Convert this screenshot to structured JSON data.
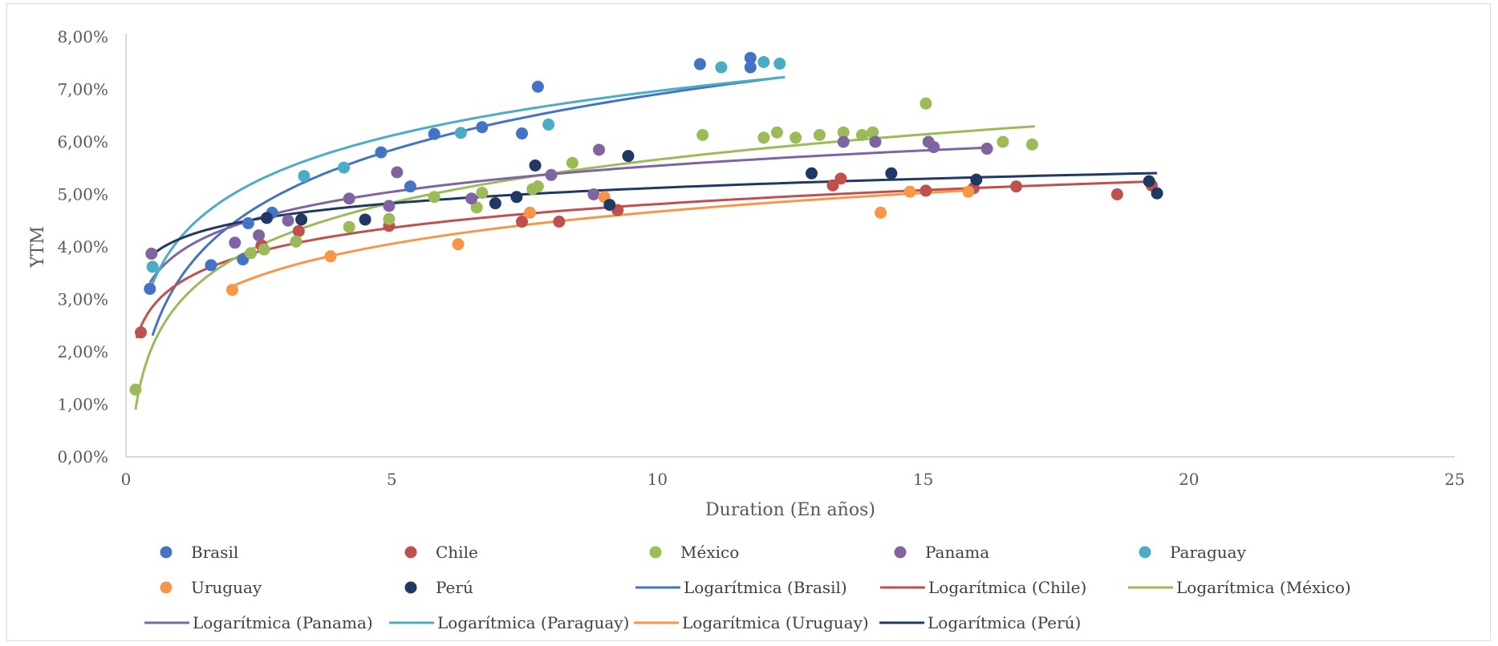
{
  "chart_data": {
    "type": "scatter",
    "title": "",
    "xlabel": "Duration (En años)",
    "ylabel": "YTM",
    "xlim": [
      0,
      25
    ],
    "ylim": [
      0,
      0.08
    ],
    "x_ticks": [
      "0",
      "5",
      "10",
      "15",
      "20",
      "25"
    ],
    "y_ticks": [
      "0,00%",
      "1,00%",
      "2,00%",
      "3,00%",
      "4,00%",
      "5,00%",
      "6,00%",
      "7,00%",
      "8,00%"
    ],
    "grid": false,
    "legend_position": "bottom",
    "series": [
      {
        "name": "Brasil",
        "color": "#4472C4",
        "trend_name": "Logarítmica (Brasil)",
        "trend_range": [
          0.5,
          12.3
        ],
        "points": [
          [
            0.45,
            0.032
          ],
          [
            1.6,
            0.0365
          ],
          [
            2.2,
            0.0376
          ],
          [
            2.3,
            0.0445
          ],
          [
            2.75,
            0.0465
          ],
          [
            4.8,
            0.058
          ],
          [
            5.35,
            0.0515
          ],
          [
            5.8,
            0.0615
          ],
          [
            6.7,
            0.0628
          ],
          [
            7.45,
            0.0616
          ],
          [
            7.75,
            0.0705
          ],
          [
            10.8,
            0.0748
          ],
          [
            11.75,
            0.0742
          ],
          [
            11.75,
            0.076
          ]
        ]
      },
      {
        "name": "Chile",
        "color": "#C0504D",
        "trend_name": "Logarítmica (Chile)",
        "trend_range": [
          0.2,
          19.3
        ],
        "points": [
          [
            0.28,
            0.0237
          ],
          [
            2.55,
            0.0403
          ],
          [
            3.25,
            0.043
          ],
          [
            4.95,
            0.044
          ],
          [
            7.45,
            0.0448
          ],
          [
            8.15,
            0.0448
          ],
          [
            9.25,
            0.047
          ],
          [
            13.3,
            0.0517
          ],
          [
            13.45,
            0.053
          ],
          [
            15.05,
            0.0507
          ],
          [
            15.95,
            0.0512
          ],
          [
            16.75,
            0.0515
          ],
          [
            18.65,
            0.05
          ],
          [
            19.3,
            0.0517
          ]
        ]
      },
      {
        "name": "México",
        "color": "#9BBB59",
        "trend_name": "Logarítmica (México)",
        "trend_range": [
          0.18,
          17.1
        ],
        "points": [
          [
            0.18,
            0.0128
          ],
          [
            2.35,
            0.0388
          ],
          [
            2.6,
            0.0395
          ],
          [
            3.2,
            0.041
          ],
          [
            4.2,
            0.0438
          ],
          [
            4.95,
            0.0453
          ],
          [
            5.8,
            0.0495
          ],
          [
            6.6,
            0.0475
          ],
          [
            6.7,
            0.0503
          ],
          [
            7.65,
            0.051
          ],
          [
            7.75,
            0.0515
          ],
          [
            8.4,
            0.056
          ],
          [
            10.85,
            0.0613
          ],
          [
            12.0,
            0.0608
          ],
          [
            12.25,
            0.0618
          ],
          [
            12.6,
            0.0608
          ],
          [
            13.05,
            0.0613
          ],
          [
            13.5,
            0.0618
          ],
          [
            13.85,
            0.0613
          ],
          [
            14.05,
            0.0618
          ],
          [
            15.05,
            0.0673
          ],
          [
            16.5,
            0.06
          ],
          [
            17.05,
            0.0595
          ]
        ]
      },
      {
        "name": "Panama",
        "color": "#8064A2",
        "trend_name": "Logarítmica (Panama)",
        "trend_range": [
          0.45,
          16.2
        ],
        "points": [
          [
            0.48,
            0.0387
          ],
          [
            2.05,
            0.0408
          ],
          [
            2.5,
            0.0422
          ],
          [
            3.05,
            0.045
          ],
          [
            4.2,
            0.0492
          ],
          [
            4.95,
            0.0478
          ],
          [
            5.1,
            0.0542
          ],
          [
            6.5,
            0.0492
          ],
          [
            8.0,
            0.0537
          ],
          [
            8.8,
            0.05
          ],
          [
            8.9,
            0.0585
          ],
          [
            13.5,
            0.06
          ],
          [
            14.1,
            0.06
          ],
          [
            15.1,
            0.06
          ],
          [
            15.2,
            0.059
          ],
          [
            16.2,
            0.0587
          ]
        ]
      },
      {
        "name": "Paraguay",
        "color": "#4BACC6",
        "trend_name": "Logarítmica (Paraguay)",
        "trend_range": [
          0.5,
          12.4
        ],
        "points": [
          [
            0.5,
            0.0362
          ],
          [
            3.35,
            0.0535
          ],
          [
            4.1,
            0.0551
          ],
          [
            6.3,
            0.0617
          ],
          [
            7.95,
            0.0633
          ],
          [
            11.2,
            0.0742
          ],
          [
            12.0,
            0.0752
          ],
          [
            12.3,
            0.0749
          ]
        ]
      },
      {
        "name": "Uruguay",
        "color": "#F79646",
        "trend_name": "Logarítmica (Uruguay)",
        "trend_range": [
          2.0,
          15.9
        ],
        "points": [
          [
            2.0,
            0.0318
          ],
          [
            3.85,
            0.0382
          ],
          [
            6.25,
            0.0405
          ],
          [
            7.6,
            0.0465
          ],
          [
            9.0,
            0.0495
          ],
          [
            14.2,
            0.0465
          ],
          [
            14.75,
            0.0505
          ],
          [
            15.85,
            0.0505
          ]
        ]
      },
      {
        "name": "Perú",
        "color": "#1F3864",
        "trend_name": "Logarítmica (Perú)",
        "trend_range": [
          0.5,
          19.4
        ],
        "points": [
          [
            2.65,
            0.0455
          ],
          [
            3.3,
            0.0452
          ],
          [
            4.5,
            0.0452
          ],
          [
            6.95,
            0.0483
          ],
          [
            7.35,
            0.0495
          ],
          [
            7.7,
            0.0555
          ],
          [
            9.1,
            0.048
          ],
          [
            9.45,
            0.0573
          ],
          [
            12.9,
            0.054
          ],
          [
            14.4,
            0.054
          ],
          [
            16.0,
            0.0528
          ],
          [
            19.25,
            0.0525
          ],
          [
            19.4,
            0.0502
          ]
        ]
      }
    ]
  }
}
